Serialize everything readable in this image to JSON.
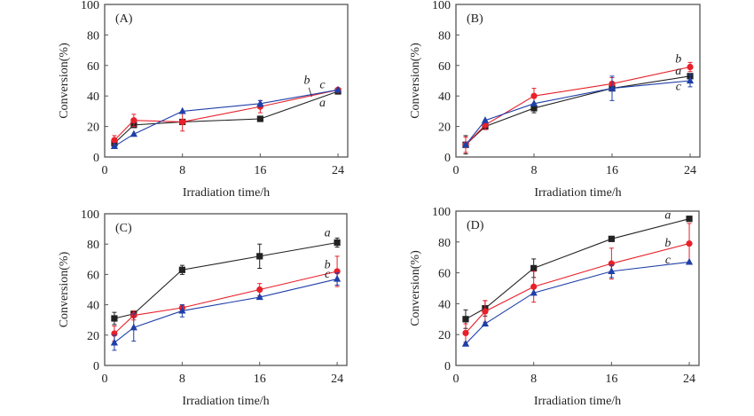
{
  "chart_data": [
    {
      "type": "line",
      "panel_label": "(A)",
      "xlabel": "Irradiation time/h",
      "ylabel": "Conversion(%)",
      "xlim": [
        0,
        25
      ],
      "ylim": [
        0,
        100
      ],
      "xticks": [
        0,
        8,
        16,
        24
      ],
      "yticks": [
        0,
        20,
        40,
        60,
        80,
        100
      ],
      "x": [
        1,
        3,
        8,
        16,
        24
      ],
      "series": [
        {
          "name": "a",
          "color": "#222222",
          "marker": "square",
          "values": [
            9,
            21,
            23,
            25,
            43
          ],
          "errors": [
            0,
            0,
            0,
            0,
            0
          ]
        },
        {
          "name": "b",
          "color": "#e8202a",
          "marker": "circle",
          "values": [
            11,
            24,
            23,
            33,
            44
          ],
          "errors": [
            3,
            4,
            6,
            4,
            0
          ]
        },
        {
          "name": "c",
          "color": "#1f3fa8",
          "marker": "triangle",
          "values": [
            7,
            15,
            30,
            35,
            44
          ],
          "errors": [
            0,
            0,
            0,
            2,
            0
          ]
        }
      ],
      "annotations": [
        {
          "text": "b",
          "x": 20.8,
          "y": 48
        },
        {
          "text": "c",
          "x": 22.4,
          "y": 45
        },
        {
          "text": "a",
          "x": 22.4,
          "y": 33
        }
      ]
    },
    {
      "type": "line",
      "panel_label": "(B)",
      "xlabel": "Irradiation time/h",
      "ylabel": "Conversion(%)",
      "xlim": [
        0,
        25
      ],
      "ylim": [
        0,
        100
      ],
      "xticks": [
        0,
        8,
        16,
        24
      ],
      "yticks": [
        0,
        20,
        40,
        60,
        80,
        100
      ],
      "x": [
        1,
        3,
        8,
        16,
        24
      ],
      "series": [
        {
          "name": "a",
          "color": "#222222",
          "marker": "square",
          "values": [
            8,
            20,
            32,
            45,
            53
          ],
          "errors": [
            6,
            2,
            3,
            0,
            0
          ]
        },
        {
          "name": "b",
          "color": "#e8202a",
          "marker": "circle",
          "values": [
            8,
            21,
            40,
            48,
            59
          ],
          "errors": [
            5,
            3,
            5,
            4,
            3
          ]
        },
        {
          "name": "c",
          "color": "#1f3fa8",
          "marker": "triangle",
          "values": [
            8,
            24,
            35,
            45,
            50
          ],
          "errors": [
            0,
            0,
            0,
            8,
            4
          ]
        }
      ],
      "annotations": [
        {
          "text": "b",
          "x": 22.8,
          "y": 62
        },
        {
          "text": "a",
          "x": 22.8,
          "y": 54
        },
        {
          "text": "c",
          "x": 22.8,
          "y": 44
        }
      ]
    },
    {
      "type": "line",
      "panel_label": "(C)",
      "xlabel": "Irradiation time/h",
      "ylabel": "Conversion(%)",
      "xlim": [
        0,
        25
      ],
      "ylim": [
        0,
        100
      ],
      "xticks": [
        0,
        8,
        16,
        24
      ],
      "yticks": [
        0,
        20,
        40,
        60,
        80,
        100
      ],
      "x": [
        1,
        3,
        8,
        16,
        24
      ],
      "series": [
        {
          "name": "a",
          "color": "#222222",
          "marker": "square",
          "values": [
            31,
            34,
            63,
            72,
            81
          ],
          "errors": [
            4,
            0,
            3,
            8,
            3
          ]
        },
        {
          "name": "b",
          "color": "#e8202a",
          "marker": "circle",
          "values": [
            21,
            33,
            38,
            50,
            62
          ],
          "errors": [
            5,
            3,
            2,
            4,
            10
          ]
        },
        {
          "name": "c",
          "color": "#1f3fa8",
          "marker": "triangle",
          "values": [
            15,
            25,
            36,
            45,
            57
          ],
          "errors": [
            5,
            9,
            4,
            0,
            4
          ]
        }
      ],
      "annotations": [
        {
          "text": "a",
          "x": 23.0,
          "y": 85
        },
        {
          "text": "b",
          "x": 23.0,
          "y": 64
        },
        {
          "text": "c",
          "x": 23.0,
          "y": 58
        }
      ]
    },
    {
      "type": "line",
      "panel_label": "(D)",
      "xlabel": "Irradiation time/h",
      "ylabel": "Conversion(%)",
      "xlim": [
        0,
        25
      ],
      "ylim": [
        0,
        100
      ],
      "xticks": [
        0,
        8,
        16,
        24
      ],
      "yticks": [
        0,
        20,
        40,
        60,
        80,
        100
      ],
      "x": [
        1,
        3,
        8,
        16,
        24
      ],
      "series": [
        {
          "name": "a",
          "color": "#222222",
          "marker": "square",
          "values": [
            30,
            37,
            63,
            82,
            95
          ],
          "errors": [
            6,
            5,
            6,
            0,
            0
          ]
        },
        {
          "name": "b",
          "color": "#e8202a",
          "marker": "circle",
          "values": [
            21,
            35,
            51,
            66,
            79
          ],
          "errors": [
            6,
            7,
            10,
            10,
            13
          ]
        },
        {
          "name": "c",
          "color": "#1f3fa8",
          "marker": "triangle",
          "values": [
            14,
            27,
            47,
            61,
            67
          ],
          "errors": [
            0,
            0,
            0,
            4,
            0
          ]
        }
      ],
      "annotations": [
        {
          "text": "a",
          "x": 21.8,
          "y": 95
        },
        {
          "text": "b",
          "x": 21.8,
          "y": 77
        },
        {
          "text": "c",
          "x": 21.8,
          "y": 66
        }
      ]
    }
  ]
}
